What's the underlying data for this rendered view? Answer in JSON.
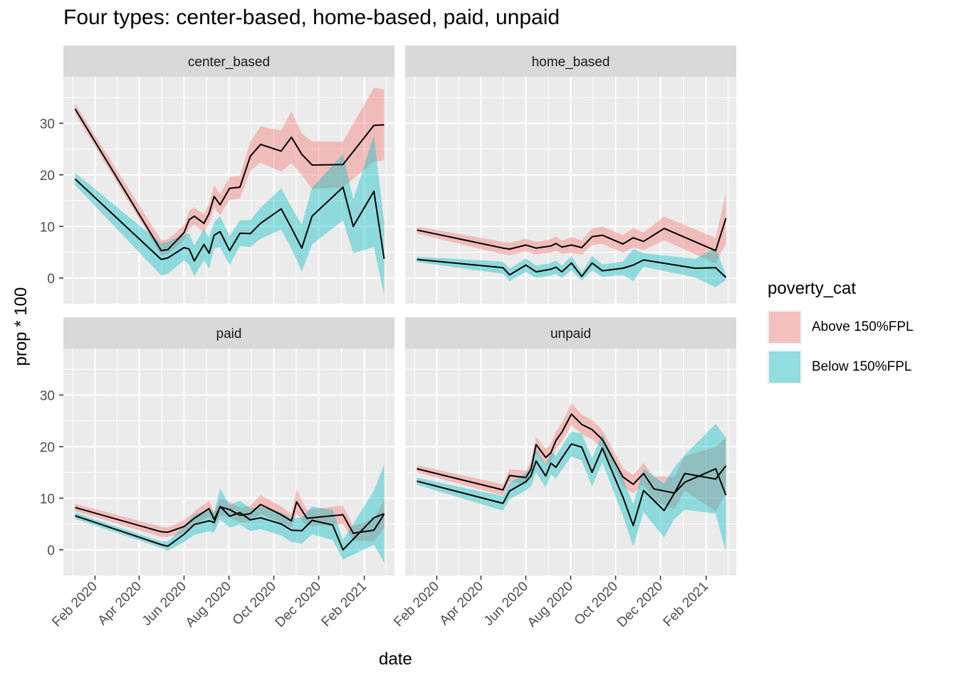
{
  "chart_data": {
    "type": "area",
    "title": "Four types: center-based, home-based, paid, unpaid",
    "xlabel": "date",
    "ylabel": "prop * 100",
    "x_ticks": [
      "Feb 2020",
      "Apr 2020",
      "Jun 2020",
      "Aug 2020",
      "Oct 2020",
      "Dec 2020",
      "Feb 2021"
    ],
    "y_ticks": [
      0,
      10,
      20,
      30
    ],
    "ylim": [
      -5,
      39
    ],
    "grid": true,
    "legend": {
      "title": "poverty_cat",
      "position": "right",
      "entries": [
        {
          "label": "Above 150%FPL",
          "color": "#F8766D"
        },
        {
          "label": "Below 150%FPL",
          "color": "#00BFC4"
        }
      ]
    },
    "panels": [
      {
        "name": "center_based",
        "series": [
          {
            "name": "Above 150%FPL",
            "x": [
              "2020-01-05",
              "2020-05-01",
              "2020-05-10",
              "2020-06-01",
              "2020-06-08",
              "2020-06-15",
              "2020-06-28",
              "2020-07-05",
              "2020-07-12",
              "2020-07-20",
              "2020-08-02",
              "2020-08-16",
              "2020-08-30",
              "2020-09-13",
              "2020-10-11",
              "2020-10-25",
              "2020-11-08",
              "2020-11-22",
              "2021-01-03",
              "2021-02-14",
              "2021-02-28"
            ],
            "y": [
              32.8,
              5.3,
              5.5,
              8.8,
              11.3,
              12.0,
              10.6,
              12.5,
              15.8,
              14.2,
              17.4,
              17.6,
              23.6,
              25.9,
              24.6,
              27.3,
              24.0,
              21.9,
              22.0,
              29.6,
              29.7
            ],
            "lower": [
              31.8,
              4.4,
              4.6,
              7.3,
              9.6,
              10.3,
              8.9,
              10.6,
              13.6,
              12.2,
              15.2,
              15.4,
              20.8,
              22.4,
              20.6,
              22.3,
              20.0,
              17.3,
              17.6,
              22.5,
              22.8
            ],
            "upper": [
              33.8,
              7.3,
              7.5,
              10.3,
              13.0,
              13.7,
              12.3,
              14.4,
              18.0,
              16.2,
              19.6,
              19.8,
              26.4,
              29.4,
              28.6,
              32.3,
              28.0,
              26.5,
              26.4,
              36.9,
              36.6
            ]
          },
          {
            "name": "Below 150%FPL",
            "x": [
              "2020-01-05",
              "2020-05-01",
              "2020-05-10",
              "2020-06-01",
              "2020-06-08",
              "2020-06-15",
              "2020-06-28",
              "2020-07-05",
              "2020-07-12",
              "2020-07-20",
              "2020-08-02",
              "2020-08-16",
              "2020-08-30",
              "2020-09-13",
              "2020-10-11",
              "2020-10-25",
              "2020-11-08",
              "2020-11-22",
              "2021-01-03",
              "2021-01-17",
              "2021-02-14",
              "2021-02-28"
            ],
            "y": [
              19.2,
              3.6,
              3.9,
              5.9,
              5.6,
              3.3,
              6.5,
              4.8,
              8.3,
              9.0,
              5.3,
              8.7,
              8.6,
              10.6,
              13.4,
              9.7,
              5.8,
              12.0,
              17.6,
              10.0,
              16.8,
              3.7
            ],
            "lower": [
              18.0,
              0.5,
              0.8,
              3.4,
              2.6,
              0.3,
              3.5,
              1.8,
              5.8,
              6.0,
              2.5,
              6.2,
              6.0,
              7.6,
              9.4,
              5.7,
              1.3,
              6.5,
              11.2,
              4.8,
              6.0,
              -3.3
            ],
            "upper": [
              20.4,
              6.7,
              7.0,
              8.4,
              8.6,
              6.3,
              9.5,
              7.8,
              10.8,
              12.0,
              8.1,
              11.2,
              11.2,
              13.6,
              17.4,
              13.7,
              10.3,
              17.5,
              24.0,
              15.2,
              27.6,
              10.7
            ]
          }
        ]
      },
      {
        "name": "home_based",
        "series": [
          {
            "name": "Above 150%FPL",
            "x": [
              "2020-01-05",
              "2020-05-01",
              "2020-05-10",
              "2020-06-01",
              "2020-06-15",
              "2020-07-05",
              "2020-07-12",
              "2020-07-20",
              "2020-08-02",
              "2020-08-16",
              "2020-08-30",
              "2020-09-13",
              "2020-10-11",
              "2020-10-25",
              "2020-11-08",
              "2020-12-06",
              "2021-02-14",
              "2021-02-28"
            ],
            "y": [
              9.3,
              5.8,
              5.6,
              6.4,
              5.8,
              6.2,
              6.7,
              6.0,
              6.4,
              5.9,
              8.0,
              8.3,
              6.6,
              7.8,
              7.1,
              9.6,
              5.3,
              11.6
            ],
            "lower": [
              8.6,
              4.6,
              4.4,
              5.2,
              4.6,
              4.9,
              5.3,
              4.7,
              4.9,
              4.5,
              6.4,
              6.6,
              4.9,
              5.9,
              5.4,
              7.3,
              2.8,
              6.7
            ],
            "upper": [
              10.0,
              7.0,
              6.8,
              7.6,
              7.0,
              7.5,
              8.1,
              7.3,
              7.9,
              7.3,
              9.6,
              10.0,
              8.3,
              9.7,
              8.8,
              11.9,
              7.8,
              16.5
            ]
          },
          {
            "name": "Below 150%FPL",
            "x": [
              "2020-01-05",
              "2020-05-01",
              "2020-05-10",
              "2020-06-01",
              "2020-06-15",
              "2020-07-05",
              "2020-07-12",
              "2020-07-20",
              "2020-08-02",
              "2020-08-16",
              "2020-08-30",
              "2020-09-13",
              "2020-10-11",
              "2020-10-25",
              "2020-11-08",
              "2021-01-17",
              "2021-02-14",
              "2021-02-28"
            ],
            "y": [
              3.6,
              2.0,
              0.6,
              2.5,
              1.2,
              1.7,
              2.1,
              1.2,
              2.9,
              0.3,
              2.9,
              1.4,
              1.9,
              2.5,
              3.5,
              1.9,
              2.0,
              0.1
            ],
            "lower": [
              3.1,
              0.8,
              -0.6,
              1.2,
              0.0,
              0.5,
              0.8,
              0.0,
              1.5,
              -0.5,
              1.5,
              0.2,
              0.6,
              -0.6,
              2.2,
              0.1,
              -1.8,
              -0.4
            ],
            "upper": [
              4.1,
              3.2,
              1.8,
              3.8,
              2.4,
              2.9,
              3.4,
              2.4,
              4.3,
              1.1,
              4.3,
              2.6,
              3.2,
              5.6,
              4.8,
              3.7,
              5.8,
              0.6
            ]
          }
        ]
      },
      {
        "name": "paid",
        "series": [
          {
            "name": "Above 150%FPL",
            "x": [
              "2020-01-05",
              "2020-05-01",
              "2020-05-10",
              "2020-06-01",
              "2020-06-15",
              "2020-07-05",
              "2020-07-12",
              "2020-07-20",
              "2020-08-02",
              "2020-08-16",
              "2020-08-30",
              "2020-09-13",
              "2020-10-11",
              "2020-10-25",
              "2020-11-01",
              "2020-11-15",
              "2021-01-03",
              "2021-01-17",
              "2021-02-14",
              "2021-02-28"
            ],
            "y": [
              8.2,
              3.5,
              3.4,
              4.5,
              6.1,
              8.0,
              5.9,
              8.3,
              7.8,
              6.7,
              7.0,
              8.8,
              6.8,
              5.6,
              9.3,
              6.1,
              6.8,
              3.2,
              3.8,
              6.9
            ],
            "lower": [
              7.5,
              2.5,
              2.5,
              3.3,
              4.8,
              6.5,
              4.5,
              6.7,
              6.3,
              5.3,
              5.5,
              7.0,
              5.2,
              4.3,
              7.0,
              4.5,
              5.0,
              1.8,
              1.6,
              4.2
            ],
            "upper": [
              8.9,
              4.5,
              4.3,
              5.7,
              7.4,
              9.5,
              7.3,
              9.9,
              9.3,
              8.1,
              8.5,
              10.6,
              8.4,
              6.9,
              11.6,
              7.7,
              8.6,
              4.6,
              6.0,
              9.6
            ]
          },
          {
            "name": "Below 150%FPL",
            "x": [
              "2020-01-05",
              "2020-05-01",
              "2020-05-10",
              "2020-06-01",
              "2020-06-15",
              "2020-07-05",
              "2020-07-12",
              "2020-07-20",
              "2020-08-02",
              "2020-08-16",
              "2020-08-30",
              "2020-09-13",
              "2020-10-11",
              "2020-10-25",
              "2020-11-08",
              "2020-11-22",
              "2020-12-20",
              "2021-01-03",
              "2021-02-14",
              "2021-02-28"
            ],
            "y": [
              6.6,
              1.0,
              0.7,
              3.0,
              4.9,
              5.6,
              5.3,
              8.4,
              6.5,
              7.2,
              5.8,
              6.2,
              5.0,
              3.8,
              3.7,
              5.7,
              4.8,
              0.0,
              6.2,
              7.0
            ],
            "lower": [
              6.0,
              0.4,
              -0.2,
              1.5,
              2.9,
              3.6,
              3.3,
              5.9,
              4.3,
              4.9,
              3.6,
              4.0,
              2.8,
              1.5,
              1.2,
              3.0,
              1.9,
              -1.9,
              1.0,
              -2.5
            ],
            "upper": [
              7.2,
              1.6,
              1.6,
              4.5,
              6.9,
              7.6,
              7.3,
              11.9,
              8.7,
              9.5,
              8.0,
              8.4,
              7.2,
              6.1,
              6.2,
              8.4,
              7.7,
              1.9,
              11.4,
              16.5
            ]
          }
        ]
      },
      {
        "name": "unpaid",
        "series": [
          {
            "name": "Above 150%FPL",
            "x": [
              "2020-01-05",
              "2020-05-01",
              "2020-05-10",
              "2020-06-01",
              "2020-06-08",
              "2020-06-15",
              "2020-06-28",
              "2020-07-05",
              "2020-07-12",
              "2020-07-20",
              "2020-08-02",
              "2020-08-16",
              "2020-08-30",
              "2020-09-13",
              "2020-10-11",
              "2020-10-25",
              "2020-11-08",
              "2020-11-22",
              "2020-12-20",
              "2021-01-03",
              "2021-02-14",
              "2021-02-28"
            ],
            "y": [
              15.7,
              11.6,
              14.4,
              14.0,
              15.6,
              20.4,
              17.9,
              18.8,
              21.2,
              22.8,
              26.3,
              24.3,
              23.3,
              21.4,
              14.1,
              12.7,
              14.8,
              11.8,
              11.0,
              14.8,
              13.7,
              16.3
            ],
            "lower": [
              15.0,
              10.5,
              13.2,
              12.7,
              14.1,
              18.9,
              16.3,
              17.1,
              19.5,
              21.0,
              24.2,
              22.4,
              21.4,
              19.6,
              12.4,
              10.9,
              12.8,
              9.4,
              7.9,
              11.5,
              7.5,
              10.8
            ],
            "upper": [
              16.4,
              12.7,
              15.6,
              15.3,
              17.1,
              21.9,
              19.5,
              20.5,
              22.9,
              24.6,
              28.4,
              26.2,
              25.2,
              23.2,
              15.8,
              14.5,
              16.8,
              14.2,
              14.1,
              18.1,
              19.9,
              21.8
            ]
          },
          {
            "name": "Below 150%FPL",
            "x": [
              "2020-01-05",
              "2020-05-01",
              "2020-05-10",
              "2020-06-01",
              "2020-06-08",
              "2020-06-15",
              "2020-06-28",
              "2020-07-05",
              "2020-07-12",
              "2020-07-20",
              "2020-08-02",
              "2020-08-16",
              "2020-08-30",
              "2020-09-13",
              "2020-10-11",
              "2020-10-25",
              "2020-11-08",
              "2020-12-06",
              "2020-12-20",
              "2021-01-03",
              "2021-02-14",
              "2021-02-28"
            ],
            "y": [
              13.3,
              9.0,
              11.4,
              13.2,
              14.3,
              17.2,
              14.3,
              16.8,
              16.0,
              17.8,
              20.5,
              19.9,
              15.0,
              19.7,
              10.2,
              4.7,
              11.5,
              7.6,
              11.0,
              13.1,
              15.7,
              10.6
            ],
            "lower": [
              12.6,
              7.6,
              9.8,
              11.5,
              12.3,
              15.0,
              12.1,
              14.6,
              13.8,
              15.5,
              18.1,
              17.3,
              12.3,
              17.0,
              6.6,
              0.6,
              7.3,
              2.4,
              6.0,
              7.8,
              7.0,
              -0.5
            ],
            "upper": [
              14.0,
              10.4,
              13.0,
              14.9,
              16.3,
              19.4,
              16.5,
              19.0,
              18.2,
              20.1,
              22.9,
              22.5,
              17.7,
              22.4,
              13.8,
              8.8,
              15.7,
              12.8,
              16.0,
              18.4,
              24.4,
              21.7
            ]
          }
        ]
      }
    ]
  }
}
